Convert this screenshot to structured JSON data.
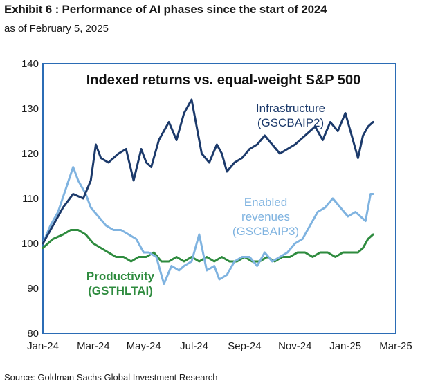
{
  "header": {
    "title": "Exhibit 6 : Performance of AI phases since the start of 2024",
    "subtitle": "as of February 5, 2025"
  },
  "footer": {
    "source": "Source: Goldman Sachs Global Investment Research"
  },
  "colors": {
    "infrastructure": "#1c3a6b",
    "enabled_revenues": "#7fb3e0",
    "productivity": "#2e8b3e",
    "frame": "#2b6cb5"
  },
  "chart_data": {
    "type": "line",
    "title": "Indexed returns vs. equal-weight S&P 500",
    "ylim": [
      80,
      140
    ],
    "yticks": [
      "80",
      "90",
      "100",
      "110",
      "120",
      "130",
      "140"
    ],
    "xlim": [
      0,
      14
    ],
    "xticks": [
      "Jan-24",
      "Mar-24",
      "May-24",
      "Jul-24",
      "Sep-24",
      "Nov-24",
      "Jan-25",
      "Mar-25"
    ],
    "series": [
      {
        "key": "infrastructure",
        "label_lines": [
          "Infrastructure",
          "(GSCBAIP2)"
        ],
        "x": [
          0,
          0.4,
          0.8,
          1.2,
          1.6,
          1.9,
          2.1,
          2.3,
          2.6,
          3.0,
          3.3,
          3.6,
          3.9,
          4.1,
          4.3,
          4.6,
          5.0,
          5.3,
          5.6,
          5.9,
          6.1,
          6.3,
          6.6,
          6.9,
          7.1,
          7.3,
          7.6,
          7.9,
          8.2,
          8.5,
          8.8,
          9.1,
          9.4,
          9.7,
          10.0,
          10.4,
          10.8,
          11.1,
          11.4,
          11.7,
          12.0,
          12.3,
          12.5,
          12.7,
          12.9,
          13.1
        ],
        "y": [
          100,
          104,
          108,
          111,
          110,
          114,
          122,
          119,
          118,
          120,
          121,
          114,
          121,
          118,
          117,
          123,
          127,
          123,
          129,
          132,
          126,
          120,
          118,
          122,
          120,
          116,
          118,
          119,
          121,
          122,
          124,
          122,
          120,
          121,
          122,
          124,
          126,
          123,
          127,
          125,
          129,
          123,
          119,
          124,
          126,
          127
        ]
      },
      {
        "key": "enabled_revenues",
        "label_lines": [
          "Enabled",
          "revenues",
          "(GSCBAIP3)"
        ],
        "x": [
          0,
          0.3,
          0.6,
          0.9,
          1.2,
          1.4,
          1.7,
          1.9,
          2.2,
          2.5,
          2.8,
          3.1,
          3.4,
          3.7,
          4.0,
          4.2,
          4.5,
          4.8,
          5.1,
          5.4,
          5.6,
          5.9,
          6.2,
          6.5,
          6.8,
          7.0,
          7.3,
          7.6,
          7.9,
          8.2,
          8.5,
          8.8,
          9.1,
          9.4,
          9.7,
          10.0,
          10.3,
          10.6,
          10.9,
          11.2,
          11.5,
          11.8,
          12.1,
          12.4,
          12.6,
          12.8,
          13.0,
          13.1
        ],
        "y": [
          100,
          104,
          107,
          112,
          117,
          114,
          111,
          108,
          106,
          104,
          103,
          103,
          102,
          101,
          98,
          98,
          97,
          91,
          95,
          94,
          95,
          96,
          102,
          94,
          95,
          92,
          93,
          96,
          97,
          97,
          95,
          98,
          96,
          97,
          98,
          100,
          101,
          104,
          107,
          108,
          110,
          108,
          106,
          107,
          106,
          105,
          111,
          111
        ]
      },
      {
        "key": "productivity",
        "label_lines": [
          "Productivity",
          "(GSTHLTAI)"
        ],
        "x": [
          0,
          0.4,
          0.8,
          1.1,
          1.4,
          1.7,
          2.0,
          2.3,
          2.6,
          2.9,
          3.2,
          3.5,
          3.8,
          4.1,
          4.4,
          4.7,
          5.0,
          5.3,
          5.6,
          5.9,
          6.2,
          6.5,
          6.8,
          7.1,
          7.4,
          7.7,
          8.0,
          8.3,
          8.6,
          8.9,
          9.2,
          9.5,
          9.8,
          10.1,
          10.4,
          10.7,
          11.0,
          11.3,
          11.6,
          11.9,
          12.2,
          12.5,
          12.7,
          12.9,
          13.1
        ],
        "y": [
          99,
          101,
          102,
          103,
          103,
          102,
          100,
          99,
          98,
          97,
          97,
          96,
          97,
          97,
          98,
          96,
          96,
          97,
          96,
          97,
          96,
          97,
          96,
          97,
          96,
          96,
          97,
          96,
          96,
          97,
          96,
          97,
          97,
          98,
          98,
          97,
          98,
          98,
          97,
          98,
          98,
          98,
          99,
          101,
          102
        ]
      }
    ]
  }
}
